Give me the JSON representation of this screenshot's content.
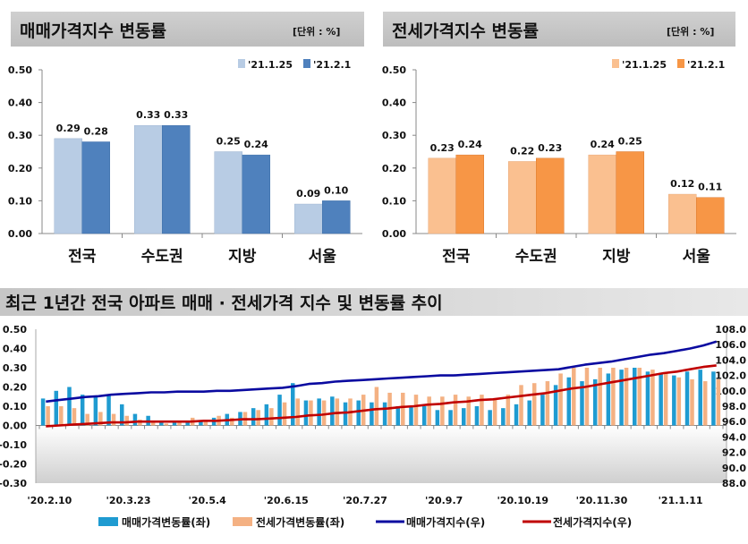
{
  "chart_data": [
    {
      "type": "bar",
      "title": "매매가격지수 변동률",
      "unit": "[단위 : %]",
      "categories": [
        "전국",
        "수도권",
        "지방",
        "서울"
      ],
      "series": [
        {
          "name": "'21.1.25",
          "values": [
            0.29,
            0.33,
            0.25,
            0.09
          ],
          "color": "#b8cce4"
        },
        {
          "name": "'21.2.1",
          "values": [
            0.28,
            0.33,
            0.24,
            0.1
          ],
          "color": "#4f81bd"
        }
      ],
      "yticks": [
        "0.50",
        "0.40",
        "0.30",
        "0.20",
        "0.10",
        "0.00"
      ],
      "ylim": [
        0,
        0.5
      ],
      "legend": "top-right"
    },
    {
      "type": "bar",
      "title": "전세가격지수 변동률",
      "unit": "[단위 : %]",
      "categories": [
        "전국",
        "수도권",
        "지방",
        "서울"
      ],
      "series": [
        {
          "name": "'21.1.25",
          "values": [
            0.23,
            0.22,
            0.24,
            0.12
          ],
          "color": "#fac090"
        },
        {
          "name": "'21.2.1",
          "values": [
            0.24,
            0.23,
            0.25,
            0.11
          ],
          "color": "#f79646"
        }
      ],
      "yticks": [
        "0.50",
        "0.40",
        "0.30",
        "0.20",
        "0.10",
        "0.00"
      ],
      "ylim": [
        0,
        0.5
      ],
      "legend": "top-right"
    },
    {
      "type": "bar+line",
      "title": "최근 1년간 전국 아파트 매매 · 전세가격 지수 및 변동률 추이",
      "xticks": [
        "'20.2.10",
        "'20.3.23",
        "'20.5.4",
        "'20.6.15",
        "'20.7.27",
        "'20.9.7",
        "'20.10.19",
        "'20.11.30",
        "'21.1.11"
      ],
      "yticks_left": [
        "0.50",
        "0.40",
        "0.30",
        "0.20",
        "0.10",
        "0.00",
        "-0.10",
        "-0.20",
        "-0.30"
      ],
      "yticks_right": [
        "108.0",
        "106.0",
        "104.0",
        "102.0",
        "100.0",
        "98.0",
        "96.0",
        "94.0",
        "92.0",
        "90.0",
        "88.0"
      ],
      "ylim_left": [
        -0.3,
        0.5
      ],
      "ylim_right": [
        88,
        108
      ],
      "legend": "bottom",
      "series": [
        {
          "name": "매매가격변동률(좌)",
          "type": "bar",
          "axis": "left",
          "color": "#1f9bd1",
          "values": [
            0.14,
            0.18,
            0.2,
            0.16,
            0.15,
            0.16,
            0.11,
            0.06,
            0.05,
            0.02,
            0.02,
            0.02,
            0.02,
            0.04,
            0.06,
            0.07,
            0.09,
            0.11,
            0.16,
            0.22,
            0.13,
            0.14,
            0.15,
            0.12,
            0.13,
            0.12,
            0.12,
            0.1,
            0.1,
            0.1,
            0.08,
            0.08,
            0.09,
            0.1,
            0.08,
            0.09,
            0.11,
            0.13,
            0.16,
            0.21,
            0.25,
            0.23,
            0.24,
            0.27,
            0.29,
            0.3,
            0.28,
            0.27,
            0.26,
            0.28,
            0.29,
            0.28
          ]
        },
        {
          "name": "전세가격변동률(좌)",
          "type": "bar",
          "axis": "left",
          "color": "#f4b183",
          "values": [
            0.1,
            0.1,
            0.09,
            0.06,
            0.07,
            0.06,
            0.05,
            0.03,
            0.02,
            0.01,
            0.02,
            0.04,
            0.03,
            0.05,
            0.04,
            0.07,
            0.08,
            0.09,
            0.12,
            0.14,
            0.13,
            0.13,
            0.14,
            0.14,
            0.16,
            0.2,
            0.17,
            0.17,
            0.16,
            0.15,
            0.15,
            0.16,
            0.15,
            0.16,
            0.14,
            0.16,
            0.21,
            0.22,
            0.23,
            0.27,
            0.3,
            0.3,
            0.3,
            0.3,
            0.3,
            0.3,
            0.29,
            0.27,
            0.25,
            0.24,
            0.23,
            0.24
          ]
        },
        {
          "name": "매매가격지수(우)",
          "type": "line",
          "axis": "right",
          "color": "#0a0aa0",
          "values": [
            98.6,
            98.8,
            99.0,
            99.2,
            99.3,
            99.5,
            99.6,
            99.7,
            99.8,
            99.8,
            99.9,
            99.9,
            99.9,
            100.0,
            100.0,
            100.1,
            100.2,
            100.3,
            100.4,
            100.6,
            100.9,
            101.0,
            101.2,
            101.3,
            101.4,
            101.5,
            101.6,
            101.7,
            101.8,
            101.9,
            102.0,
            102.0,
            102.1,
            102.2,
            102.3,
            102.4,
            102.5,
            102.6,
            102.7,
            102.8,
            103.1,
            103.4,
            103.6,
            103.8,
            104.1,
            104.4,
            104.7,
            104.9,
            105.2,
            105.5,
            105.9,
            106.4
          ]
        },
        {
          "name": "전세가격지수(우)",
          "type": "line",
          "axis": "right",
          "color": "#c00000",
          "values": [
            95.4,
            95.5,
            95.6,
            95.7,
            95.8,
            95.9,
            95.9,
            96.0,
            96.0,
            96.0,
            96.0,
            96.0,
            96.1,
            96.1,
            96.2,
            96.3,
            96.3,
            96.4,
            96.5,
            96.6,
            96.8,
            96.9,
            97.1,
            97.2,
            97.4,
            97.6,
            97.7,
            97.9,
            98.0,
            98.2,
            98.3,
            98.5,
            98.6,
            98.8,
            98.9,
            99.1,
            99.3,
            99.5,
            99.7,
            100.0,
            100.3,
            100.5,
            100.8,
            101.1,
            101.4,
            101.7,
            102.0,
            102.3,
            102.5,
            102.8,
            103.1,
            103.3
          ]
        }
      ]
    }
  ]
}
